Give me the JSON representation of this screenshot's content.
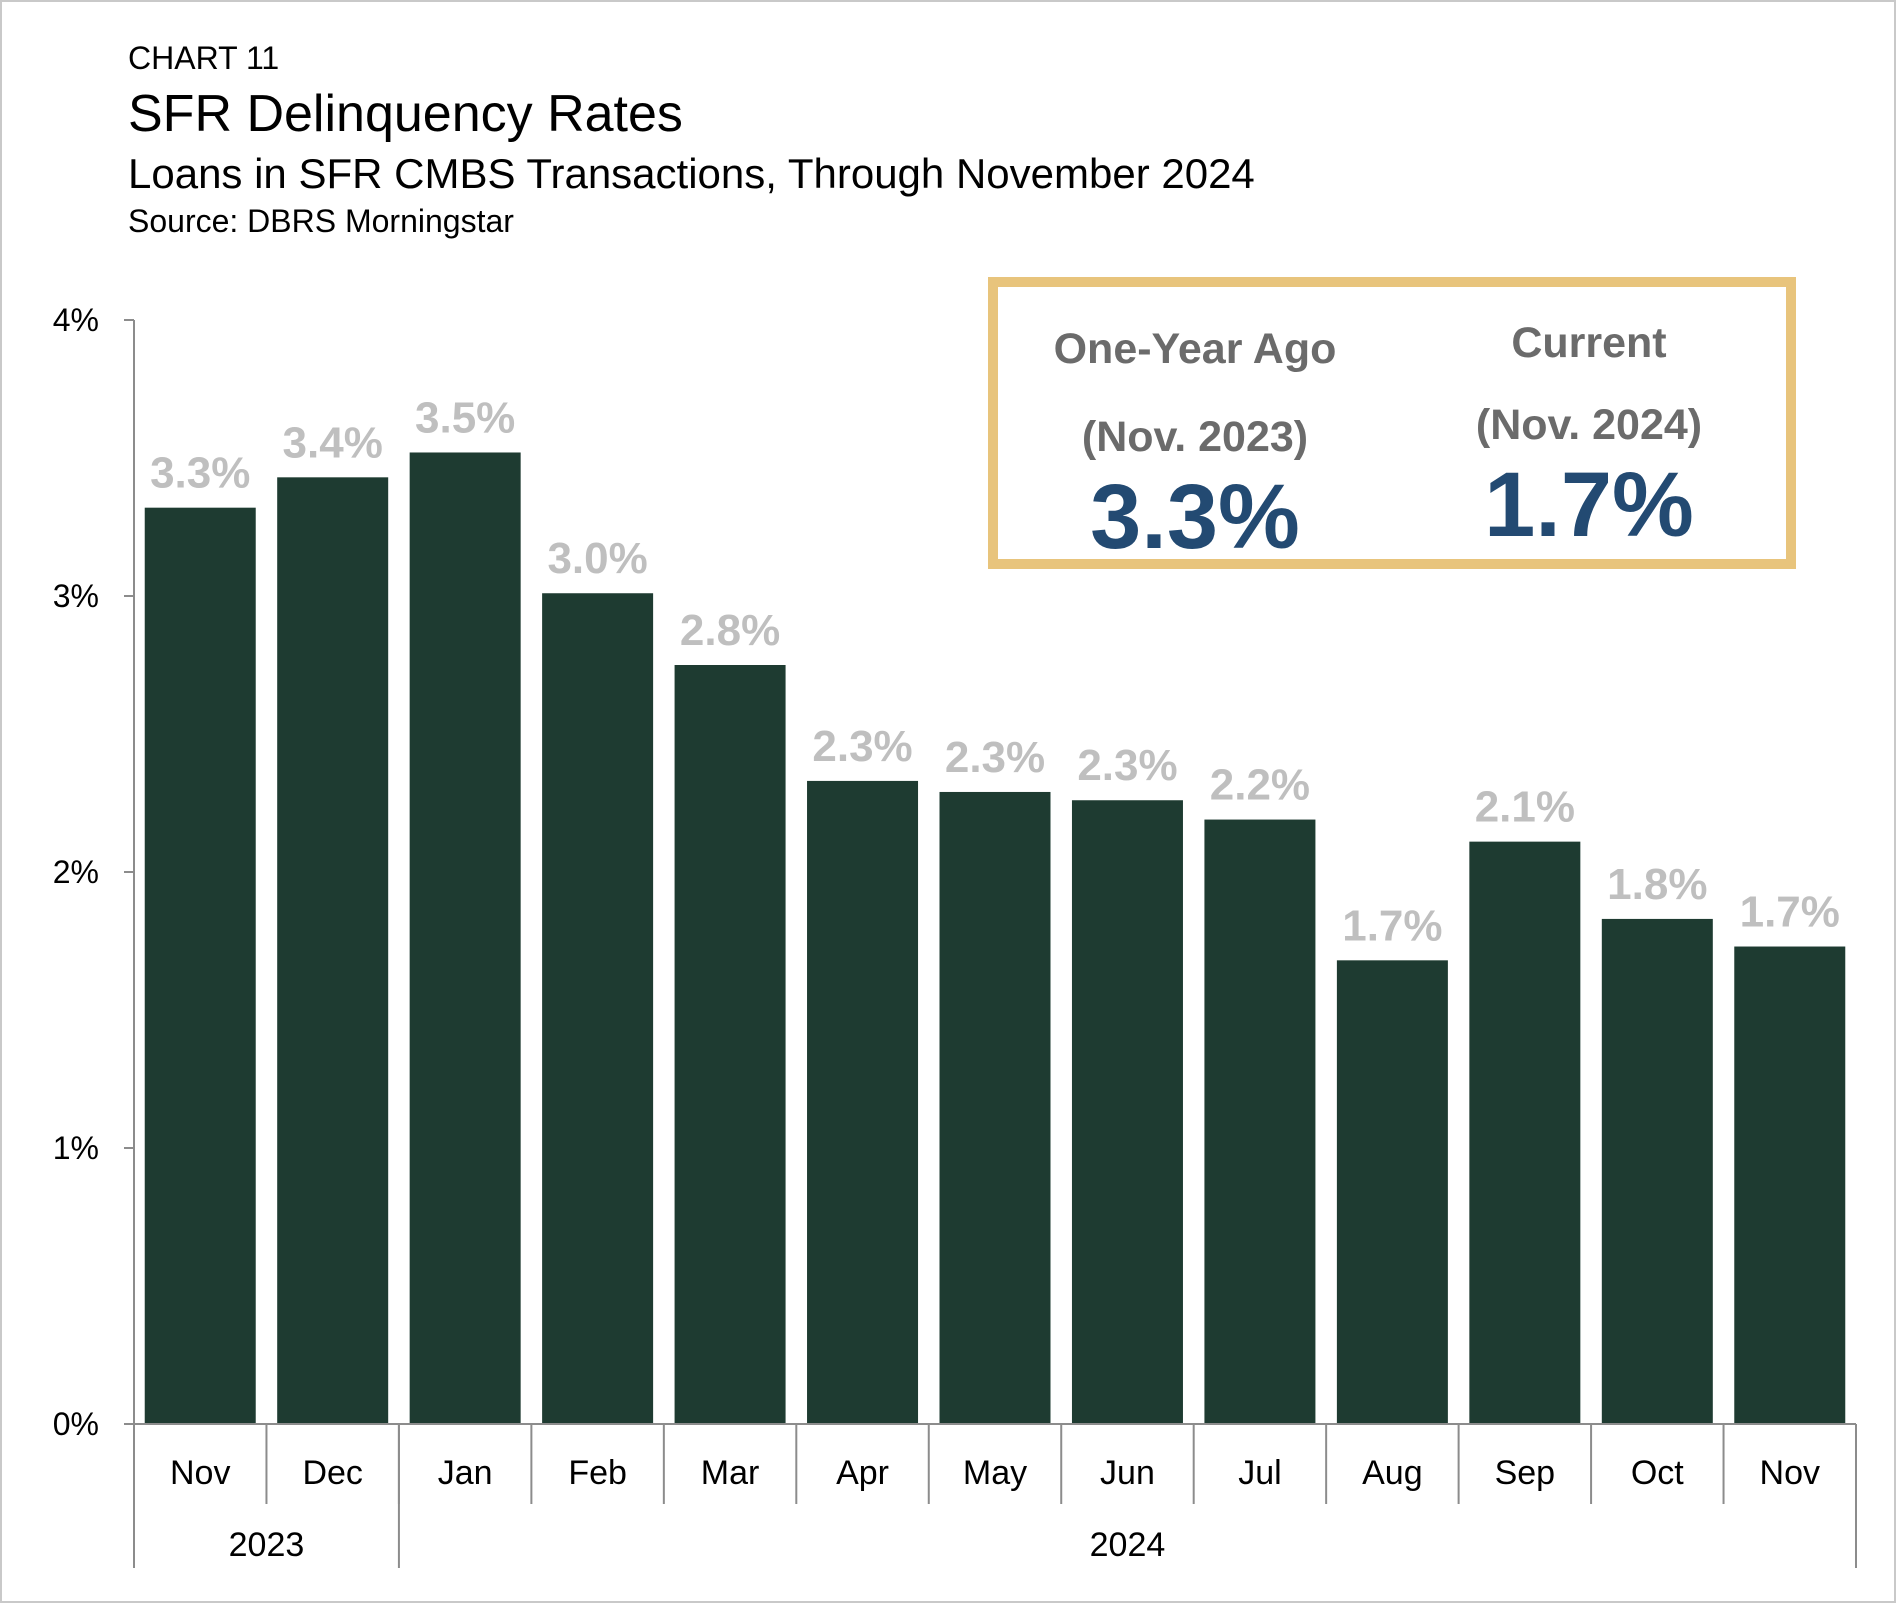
{
  "chart_label": "CHART 11",
  "title": "SFR Delinquency Rates",
  "subtitle": "Loans in SFR CMBS Transactions, Through November 2024",
  "source": "Source: DBRS Morningstar",
  "colors": {
    "bar": "#1e3b31",
    "data_label": "#bfbfbf",
    "callout_border": "#e8c47c",
    "callout_value": "#234a72",
    "callout_heading": "#6b6b6b"
  },
  "callout": {
    "one_year_ago": {
      "heading_line1": "One-Year Ago",
      "heading_line2": "(Nov. 2023)",
      "value": "3.3%"
    },
    "current": {
      "heading_line1": "Current",
      "heading_line2": "(Nov. 2024)",
      "value": "1.7%"
    }
  },
  "chart_data": {
    "type": "bar",
    "categories": [
      "Nov",
      "Dec",
      "Jan",
      "Feb",
      "Mar",
      "Apr",
      "May",
      "Jun",
      "Jul",
      "Aug",
      "Sep",
      "Oct",
      "Nov"
    ],
    "values": [
      3.32,
      3.43,
      3.52,
      3.01,
      2.75,
      2.33,
      2.29,
      2.26,
      2.19,
      1.68,
      2.11,
      1.83,
      1.73
    ],
    "data_labels": [
      "3.3%",
      "3.4%",
      "3.5%",
      "3.0%",
      "2.8%",
      "2.3%",
      "2.3%",
      "2.3%",
      "2.2%",
      "1.7%",
      "2.1%",
      "1.8%",
      "1.7%"
    ],
    "year_groups": [
      {
        "label": "2023",
        "count": 2
      },
      {
        "label": "2024",
        "count": 11
      }
    ],
    "y_ticks": [
      "0%",
      "1%",
      "2%",
      "3%",
      "4%"
    ],
    "ylim": [
      0,
      4
    ],
    "grid": false,
    "legend": "none"
  }
}
